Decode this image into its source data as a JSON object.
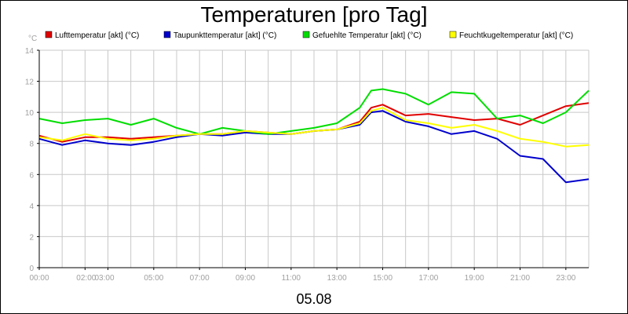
{
  "chart_data": {
    "type": "line",
    "title": "Temperaturen [pro Tag]",
    "xlabel": "05.08",
    "ylabel": "°C",
    "ylim": [
      0,
      14
    ],
    "yticks": [
      "0",
      "2",
      "4",
      "6",
      "8",
      "10",
      "12",
      "14"
    ],
    "xlim": [
      0,
      24
    ],
    "xticks": [
      {
        "label": "00:00",
        "hour": 0
      },
      {
        "label": "02:00",
        "hour": 2
      },
      {
        "label": "03:00",
        "hour": 3
      },
      {
        "label": "05:00",
        "hour": 5
      },
      {
        "label": "07:00",
        "hour": 7
      },
      {
        "label": "09:00",
        "hour": 9
      },
      {
        "label": "11:00",
        "hour": 11
      },
      {
        "label": "13:00",
        "hour": 13
      },
      {
        "label": "15:00",
        "hour": 15
      },
      {
        "label": "17:00",
        "hour": 17
      },
      {
        "label": "19:00",
        "hour": 19
      },
      {
        "label": "21:00",
        "hour": 21
      },
      {
        "label": "23:00",
        "hour": 23
      }
    ],
    "grid": true,
    "series": [
      {
        "name": "Lufttemperatur [akt] (°C)",
        "color": "#e00000",
        "x": [
          0,
          1,
          2,
          3,
          4,
          5,
          6,
          7,
          8,
          9,
          10,
          11,
          12,
          13,
          14,
          14.5,
          15,
          16,
          17,
          18,
          19,
          20,
          21,
          22,
          23,
          24
        ],
        "values": [
          8.5,
          8.1,
          8.4,
          8.4,
          8.3,
          8.4,
          8.5,
          8.6,
          8.6,
          8.8,
          8.7,
          8.6,
          8.8,
          8.9,
          9.4,
          10.3,
          10.5,
          9.8,
          9.9,
          9.7,
          9.5,
          9.6,
          9.2,
          9.8,
          10.4,
          10.6
        ]
      },
      {
        "name": "Taupunkttemperatur [akt] (°C)",
        "color": "#0000cc",
        "x": [
          0,
          1,
          2,
          3,
          4,
          5,
          6,
          7,
          8,
          9,
          10,
          11,
          12,
          13,
          14,
          14.5,
          15,
          16,
          17,
          18,
          19,
          20,
          21,
          22,
          23,
          24
        ],
        "values": [
          8.3,
          7.9,
          8.2,
          8.0,
          7.9,
          8.1,
          8.4,
          8.6,
          8.5,
          8.7,
          8.6,
          8.6,
          8.8,
          8.9,
          9.2,
          10.0,
          10.1,
          9.4,
          9.1,
          8.6,
          8.8,
          8.3,
          7.2,
          7.0,
          5.5,
          5.7
        ]
      },
      {
        "name": "Gefuehlte Temperatur [akt] (°C)",
        "color": "#00dd00",
        "x": [
          0,
          1,
          2,
          3,
          4,
          5,
          6,
          7,
          8,
          9,
          10,
          11,
          12,
          13,
          14,
          14.5,
          15,
          16,
          17,
          18,
          19,
          20,
          21,
          22,
          23,
          24
        ],
        "values": [
          9.6,
          9.3,
          9.5,
          9.6,
          9.2,
          9.6,
          9.0,
          8.6,
          9.0,
          8.8,
          8.6,
          8.8,
          9.0,
          9.3,
          10.3,
          11.4,
          11.5,
          11.2,
          10.5,
          11.3,
          11.2,
          9.6,
          9.8,
          9.3,
          10.0,
          11.4
        ]
      },
      {
        "name": "Feuchtkugeltemperatur [akt] (°C)",
        "color": "#ffff00",
        "x": [
          0,
          1,
          2,
          3,
          4,
          5,
          6,
          7,
          8,
          9,
          10,
          11,
          12,
          13,
          14,
          14.5,
          15,
          16,
          17,
          18,
          19,
          20,
          21,
          22,
          23,
          24
        ],
        "values": [
          8.4,
          8.2,
          8.6,
          8.3,
          8.2,
          8.3,
          8.5,
          8.6,
          8.6,
          8.8,
          8.7,
          8.6,
          8.8,
          8.9,
          9.3,
          10.1,
          10.3,
          9.5,
          9.3,
          9.0,
          9.2,
          8.8,
          8.3,
          8.1,
          7.8,
          7.9
        ]
      }
    ]
  }
}
